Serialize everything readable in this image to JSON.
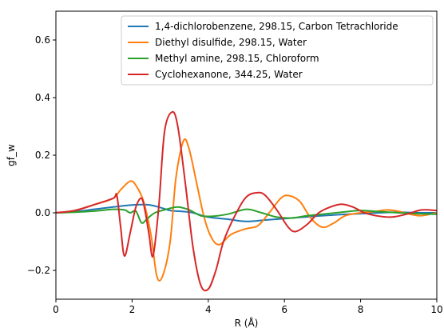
{
  "chart_data": {
    "type": "line",
    "xlabel": "R (Å)",
    "ylabel": "gf_w",
    "xlim": [
      0,
      10
    ],
    "ylim": [
      -0.3,
      0.7
    ],
    "xticks": [
      0,
      2,
      4,
      6,
      8,
      10
    ],
    "yticks": [
      -0.2,
      0.0,
      0.2,
      0.4,
      0.6
    ],
    "xtick_labels": [
      "0",
      "2",
      "4",
      "6",
      "8",
      "10"
    ],
    "ytick_labels": [
      "−0.2",
      "0.0",
      "0.2",
      "0.4",
      "0.6"
    ],
    "grid": false,
    "legend_position": "top-right",
    "series": [
      {
        "name": "1,4-dichlorobenzene, 298.15, Carbon Tetrachloride",
        "color": "#1f77b4",
        "x": [
          0,
          0.5,
          1.0,
          1.5,
          2.0,
          2.4,
          2.7,
          3.0,
          3.3,
          3.6,
          4.0,
          4.5,
          5.0,
          5.5,
          6.0,
          6.5,
          7.0,
          7.5,
          8.0,
          8.5,
          9.0,
          9.5,
          10.0
        ],
        "y": [
          0.0,
          0.004,
          0.012,
          0.02,
          0.027,
          0.028,
          0.02,
          0.008,
          0.005,
          0.0,
          -0.015,
          -0.022,
          -0.03,
          -0.025,
          -0.02,
          -0.015,
          -0.01,
          -0.006,
          -0.003,
          0.0,
          0.002,
          0.0,
          0.0
        ]
      },
      {
        "name": "Diethyl disulfide, 298.15, Water",
        "color": "#ff7f0e",
        "x": [
          0,
          0.5,
          1.0,
          1.5,
          1.7,
          1.95,
          2.1,
          2.3,
          2.5,
          2.65,
          2.8,
          3.0,
          3.15,
          3.35,
          3.5,
          3.7,
          3.9,
          4.1,
          4.3,
          4.6,
          5.0,
          5.3,
          5.6,
          5.9,
          6.1,
          6.4,
          6.7,
          7.0,
          7.3,
          7.6,
          8.0,
          8.4,
          8.7,
          9.0,
          9.3,
          9.6,
          10.0
        ],
        "y": [
          0.0,
          0.008,
          0.028,
          0.05,
          0.08,
          0.11,
          0.095,
          0.04,
          -0.08,
          -0.22,
          -0.22,
          -0.1,
          0.12,
          0.25,
          0.22,
          0.1,
          -0.02,
          -0.09,
          -0.11,
          -0.075,
          -0.055,
          -0.045,
          0.0,
          0.05,
          0.06,
          0.04,
          -0.02,
          -0.05,
          -0.035,
          -0.01,
          0.0,
          0.005,
          0.01,
          0.005,
          -0.005,
          -0.01,
          0.0
        ]
      },
      {
        "name": "Methyl amine, 298.15, Chloroform",
        "color": "#2ca02c",
        "x": [
          0,
          0.5,
          1.0,
          1.5,
          1.8,
          1.95,
          2.1,
          2.25,
          2.4,
          2.6,
          2.9,
          3.2,
          3.5,
          3.8,
          4.1,
          4.5,
          5.0,
          5.4,
          5.8,
          6.2,
          6.6,
          7.0,
          7.5,
          8.0,
          8.5,
          9.0,
          9.5,
          10.0
        ],
        "y": [
          0.0,
          0.002,
          0.006,
          0.012,
          0.01,
          0.0,
          0.006,
          -0.035,
          -0.02,
          0.0,
          0.012,
          0.02,
          0.01,
          -0.01,
          -0.012,
          -0.005,
          0.012,
          0.0,
          -0.015,
          -0.018,
          -0.01,
          -0.005,
          0.002,
          0.008,
          0.004,
          0.0,
          -0.003,
          -0.005
        ]
      },
      {
        "name": "Cyclohexanone, 344.25, Water",
        "color": "#d62728",
        "x": [
          0,
          0.5,
          1.0,
          1.5,
          1.6,
          1.7,
          1.8,
          1.95,
          2.1,
          2.25,
          2.35,
          2.45,
          2.55,
          2.7,
          2.85,
          3.05,
          3.2,
          3.4,
          3.6,
          3.8,
          4.0,
          4.2,
          4.4,
          4.7,
          5.0,
          5.3,
          5.5,
          5.8,
          6.1,
          6.3,
          6.6,
          6.9,
          7.2,
          7.5,
          7.8,
          8.1,
          8.4,
          8.8,
          9.2,
          9.6,
          10.0
        ],
        "y": [
          0.0,
          0.008,
          0.028,
          0.05,
          0.06,
          -0.05,
          -0.15,
          -0.07,
          0.02,
          0.05,
          0.0,
          -0.08,
          -0.15,
          0.02,
          0.28,
          0.35,
          0.3,
          0.1,
          -0.12,
          -0.25,
          -0.265,
          -0.2,
          -0.1,
          -0.01,
          0.055,
          0.07,
          0.06,
          0.01,
          -0.05,
          -0.065,
          -0.04,
          0.0,
          0.02,
          0.03,
          0.02,
          0.0,
          -0.01,
          -0.015,
          -0.005,
          0.01,
          0.008
        ]
      }
    ]
  }
}
